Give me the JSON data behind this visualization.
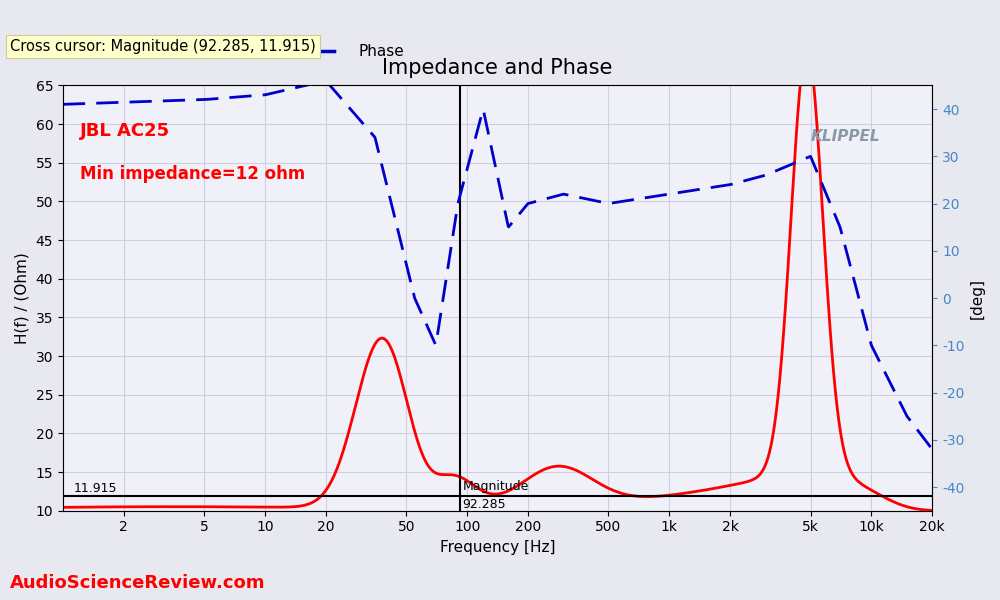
{
  "title": "Impedance and Phase",
  "xlabel": "Frequency [Hz]",
  "ylabel_left": "H(f) / (Ohm)",
  "ylabel_right": "[deg]",
  "crosscursor_text": "Cross cursor: Magnitude (92.285, 11.915)",
  "annotation_text1": "JBL AC25",
  "annotation_text2": "Min impedance=12 ohm",
  "annotation_text3": "Magnitude",
  "annotation_text4": "92.285",
  "annotation_text5": "11.915",
  "klippel_text": "KLIPPEL",
  "asr_text": "AudioScienceReview.com",
  "bg_color": "#f0f0f8",
  "plot_bg_color": "#f5f5f8",
  "grid_color": "#ccccdd",
  "crosscursor_bg": "#ffffcc",
  "mag_color": "#ff0000",
  "phase_color": "#0000cc",
  "ylim_left": [
    10,
    65
  ],
  "ylim_right": [
    -45,
    45
  ],
  "freq_min": 1.0,
  "freq_max": 20000.0,
  "xtick_labels": [
    "2",
    "5",
    "10",
    "20",
    "50",
    "100",
    "200",
    "500",
    "1k",
    "2k",
    "5k",
    "10k",
    "20k"
  ],
  "xtick_values": [
    2,
    5,
    10,
    20,
    50,
    100,
    200,
    500,
    1000,
    2000,
    5000,
    10000,
    20000
  ],
  "ytick_left": [
    10,
    15,
    20,
    25,
    30,
    35,
    40,
    45,
    50,
    55,
    60,
    65
  ],
  "ytick_right": [
    -40,
    -30,
    -20,
    -10,
    0,
    10,
    20,
    30,
    40
  ],
  "crosscursor_x": 92.285,
  "crosscursor_y": 11.915
}
